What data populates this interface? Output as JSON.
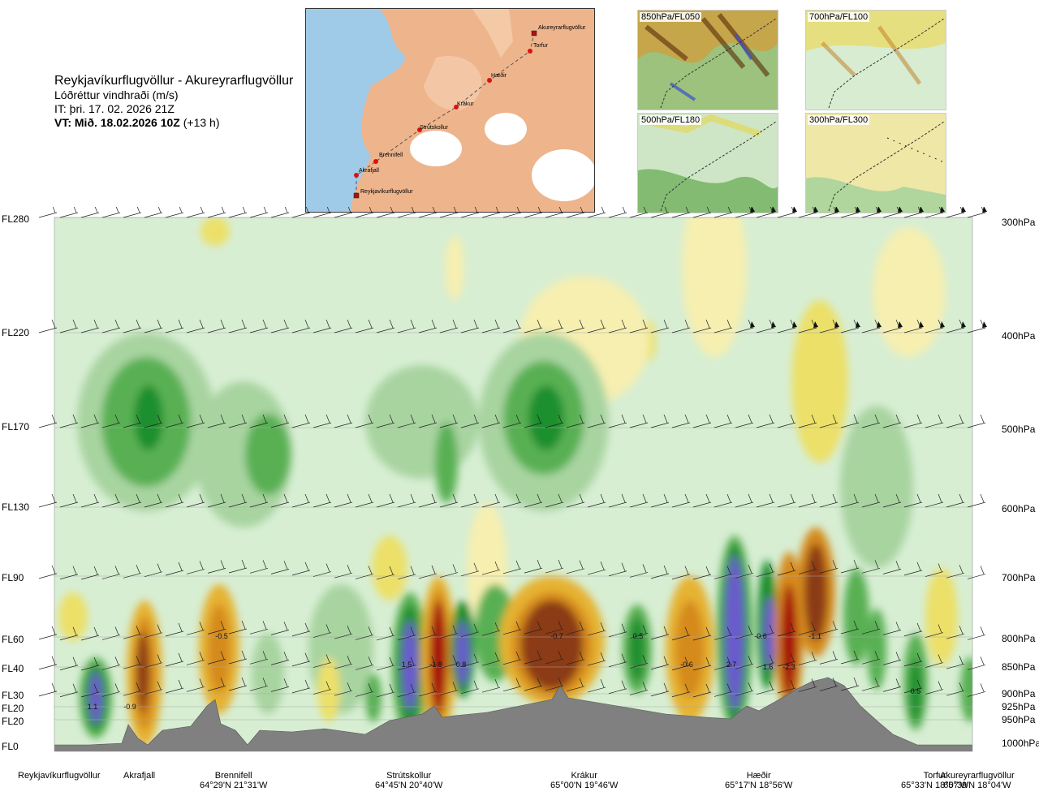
{
  "title": {
    "route": "Reykjavíkurflugvöllur - Akureyrarflugvöllur",
    "variable": "Lóðréttur vindhraði (m/s)",
    "issue_time": "IT: þri. 17. 02. 2026 21Z",
    "valid_time": "VT: Mið. 18.02.2026 10Z",
    "lead": "(+13 h)"
  },
  "map": {
    "points": [
      "Reykjavíkurflugvöllur",
      "Akrafjall",
      "Brennifell",
      "Strútskollur",
      "Krákur",
      "Hæðir",
      "Torfur",
      "Akureyrarflugvöllur"
    ]
  },
  "thumbnails": [
    "850hPa/FL050",
    "700hPa/FL100",
    "500hPa/FL180",
    "300hPa/FL300"
  ],
  "flight_levels": [
    "FL280",
    "FL220",
    "FL170",
    "FL130",
    "FL90",
    "FL60",
    "FL40",
    "FL30",
    "FL20",
    "FL20",
    "FL0"
  ],
  "pressure_levels": [
    "300hPa",
    "400hPa",
    "500hPa",
    "600hPa",
    "700hPa",
    "800hPa",
    "850hPa",
    "900hPa",
    "925hPa",
    "950hPa",
    "1000hPa"
  ],
  "locations": [
    {
      "name": "Reykjavíkurflugvöllur",
      "coord": ""
    },
    {
      "name": "Akrafjall",
      "coord": ""
    },
    {
      "name": "Brennifell",
      "coord": "64°29'N 21°31'W"
    },
    {
      "name": "Strútskollur",
      "coord": "64°45'N 20°40'W"
    },
    {
      "name": "Krákur",
      "coord": "65°00'N 19°46'W"
    },
    {
      "name": "Hæðir",
      "coord": "65°17'N 18°56'W"
    },
    {
      "name": "Torfur",
      "coord": "65°33'N 18°07'W"
    },
    {
      "name": "Akureyrarflugvöllur",
      "coord": "65°39'N 18°04'W"
    }
  ],
  "chart_data": {
    "type": "heatmap",
    "title": "Lóðréttur vindhraði (m/s)",
    "x_labels": [
      "Reykjavíkurflugvöllur",
      "Akrafjall",
      "Brennifell",
      "Strútskollur",
      "Krákur",
      "Hæðir",
      "Torfur",
      "Akureyrarflugvöllur"
    ],
    "y_left_ticks": [
      "FL280",
      "FL220",
      "FL170",
      "FL130",
      "FL90",
      "FL60",
      "FL40",
      "FL30",
      "FL20",
      "FL20",
      "FL0"
    ],
    "y_right_ticks": [
      "300hPa",
      "400hPa",
      "500hPa",
      "600hPa",
      "700hPa",
      "800hPa",
      "850hPa",
      "900hPa",
      "925hPa",
      "950hPa",
      "1000hPa"
    ],
    "value_labels": [
      "1.1",
      "-0.9",
      "-0.5",
      "1.5",
      "-1.8",
      "0.8",
      "-0.7",
      "0.5",
      "-0.6",
      "2.7",
      "-0.6",
      "1.6",
      "-2.3",
      "-1.1",
      "0.5"
    ],
    "palette": {
      "strong_up": "#6a5acd",
      "up_3": "#1f8f2e",
      "up_2": "#58b052",
      "up_1": "#a8d4a0",
      "up_0": "#d7eed3",
      "down_0": "#f6efb0",
      "down_1": "#ece069",
      "down_2": "#e6b230",
      "down_3": "#d58a1c",
      "strong_down": "#8b3a12",
      "extreme_down": "#a50d0d",
      "terrain": "#808080"
    }
  }
}
